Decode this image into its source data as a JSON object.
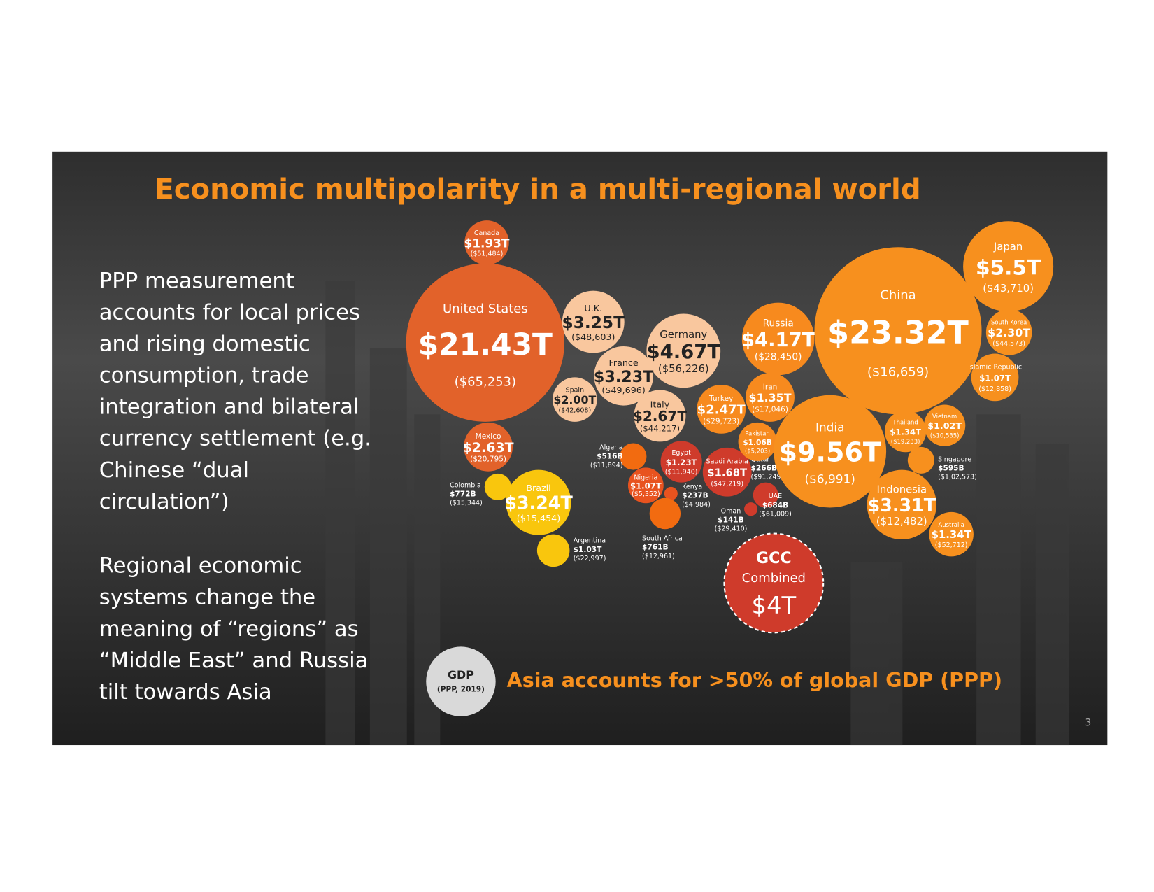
{
  "slide": {
    "title": "Economic multipolarity in a multi-regional world",
    "paragraphs": [
      [
        "PPP measurement",
        "accounts for local prices",
        "and rising domestic",
        "consumption, trade",
        "integration and bilateral",
        "currency settlement (e.g.",
        "Chinese “dual",
        "circulation”)"
      ],
      [
        "Regional economic",
        "systems change the",
        "meaning of “regions” as",
        "“Middle East” and Russia",
        "tilt towards Asia"
      ]
    ],
    "bubbles": [
      {
        "name": "Canada",
        "gdp": "$1.93T",
        "per_capita": "($51,484)"
      },
      {
        "name": "United States",
        "gdp": "$21.43T",
        "per_capita": "($65,253)"
      },
      {
        "name": "U.K.",
        "gdp": "$3.25T",
        "per_capita": "($48,603)"
      },
      {
        "name": "Germany",
        "gdp": "$4.67T",
        "per_capita": "($56,226)"
      },
      {
        "name": "France",
        "gdp": "$3.23T",
        "per_capita": "($49,696)"
      },
      {
        "name": "Spain",
        "gdp": "$2.00T",
        "per_capita": "($42,608)"
      },
      {
        "name": "Italy",
        "gdp": "$2.67T",
        "per_capita": "($44,217)"
      },
      {
        "name": "Mexico",
        "gdp": "$2.63T",
        "per_capita": "($20,795)"
      },
      {
        "name": "Colombia",
        "gdp": "$772B",
        "per_capita": "($15,344)"
      },
      {
        "name": "Brazil",
        "gdp": "$3.24T",
        "per_capita": "($15,454)"
      },
      {
        "name": "Argentina",
        "gdp": "$1.03T",
        "per_capita": "($22,997)"
      },
      {
        "name": "Algeria",
        "gdp": "$516B",
        "per_capita": "($11,894)"
      },
      {
        "name": "Egypt",
        "gdp": "$1.23T",
        "per_capita": "($11,940)"
      },
      {
        "name": "Nigeria",
        "gdp": "$1.07T",
        "per_capita": "($5,352)"
      },
      {
        "name": "Kenya",
        "gdp": "$237B",
        "per_capita": "($4,984)"
      },
      {
        "name": "South Africa",
        "gdp": "$761B",
        "per_capita": "($12,961)"
      },
      {
        "name": "Saudi Arabia",
        "gdp": "$1.68T",
        "per_capita": "($47,219)"
      },
      {
        "name": "Qatar",
        "gdp": "$266B",
        "per_capita": "($91,249)"
      },
      {
        "name": "UAE",
        "gdp": "$684B",
        "per_capita": "($61,009)"
      },
      {
        "name": "Oman",
        "gdp": "$141B",
        "per_capita": "($29,410)"
      },
      {
        "name": "Turkey",
        "gdp": "$2.47T",
        "per_capita": "($29,723)"
      },
      {
        "name": "Iran",
        "gdp": "$1.35T",
        "per_capita": "($17,046)"
      },
      {
        "name": "Russia",
        "gdp": "$4.17T",
        "per_capita": "($28,450)"
      },
      {
        "name": "Pakistan",
        "gdp": "$1.06B",
        "per_capita": "($5,203)"
      },
      {
        "name": "China",
        "gdp": "$23.32T",
        "per_capita": "($16,659)"
      },
      {
        "name": "Japan",
        "gdp": "$5.5T",
        "per_capita": "($43,710)"
      },
      {
        "name": "South Korea",
        "gdp": "$2.30T",
        "per_capita": "($44,573)"
      },
      {
        "name": "Islamic Republic",
        "gdp": "$1.07T",
        "per_capita": "($12,858)"
      },
      {
        "name": "India",
        "gdp": "$9.56T",
        "per_capita": "($6,991)"
      },
      {
        "name": "Thailand",
        "gdp": "$1.34T",
        "per_capita": "($19,233)"
      },
      {
        "name": "Vietnam",
        "gdp": "$1.02T",
        "per_capita": "($10,535)"
      },
      {
        "name": "Singapore",
        "gdp": "$595B",
        "per_capita": "($1,02,573)"
      },
      {
        "name": "Indonesia",
        "gdp": "$3.31T",
        "per_capita": "($12,482)"
      },
      {
        "name": "Australia",
        "gdp": "$1.34T",
        "per_capita": "($52,712)"
      }
    ],
    "gcc": {
      "name": "GCC",
      "note": "Combined",
      "gdp": "$4T"
    },
    "legend": {
      "title": "GDP",
      "subtitle": "(PPP, 2019)"
    },
    "caption": "Asia accounts for >50% of global GDP (PPP)",
    "page_number": "3"
  }
}
